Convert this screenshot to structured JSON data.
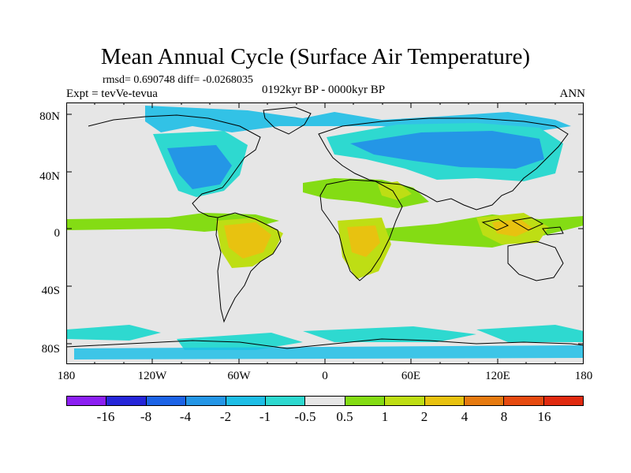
{
  "plot": {
    "title": "Mean Annual Cycle (Surface Air Temperature)",
    "stats": "rmsd= 0.690748 diff= -0.0268035",
    "experiment": "Expt = tevVe-tevua",
    "period": "0192kyr BP - 0000kyr BP",
    "season": "ANN"
  },
  "axes": {
    "lat_labels": [
      "80N",
      "40N",
      "0",
      "40S",
      "80S"
    ],
    "lon_labels": [
      "180",
      "120W",
      "60W",
      "0",
      "60E",
      "120E",
      "180"
    ]
  },
  "colorbar": {
    "labels": [
      "-16",
      "-8",
      "-4",
      "-2",
      "-1",
      "-0.5",
      "0.5",
      "1",
      "2",
      "4",
      "8",
      "16"
    ],
    "colors": [
      "#8c1ff2",
      "#2626d9",
      "#1c63e6",
      "#2496e6",
      "#1ebee6",
      "#2ed9d0",
      "#e6e6e6",
      "#84dc14",
      "#bede14",
      "#e8c210",
      "#e67a10",
      "#e64a10",
      "#e02a10"
    ]
  }
}
